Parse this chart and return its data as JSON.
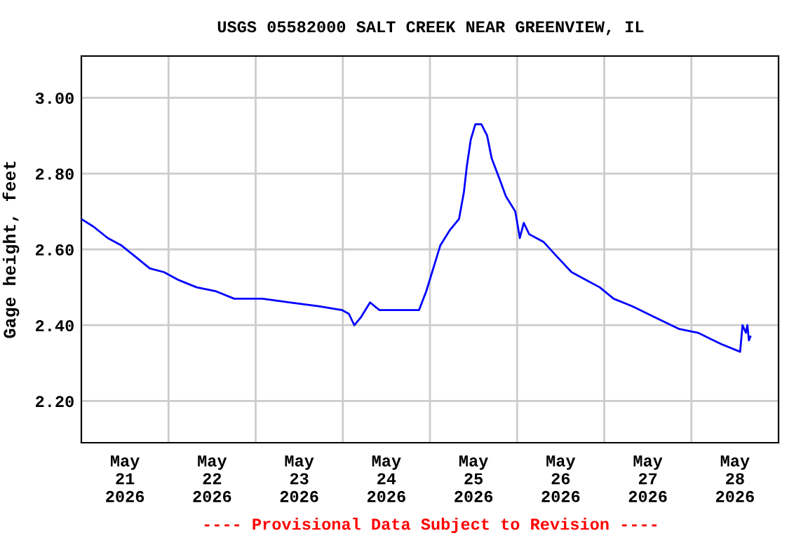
{
  "chart_data": {
    "type": "line",
    "title": "USGS 05582000 SALT CREEK NEAR GREENVIEW, IL",
    "ylabel": "Gage height, feet",
    "annotations": [
      "---- Provisional Data Subject to Revision ----"
    ],
    "series": [
      {
        "color": "#0000ff",
        "x": [
          "2026-05-21T00:00",
          "2026-05-21T03:20",
          "2026-05-21T07:15",
          "2026-05-21T11:05",
          "2026-05-21T15:00",
          "2026-05-21T18:50",
          "2026-05-21T22:45",
          "2026-05-22T02:35",
          "2026-05-22T07:45",
          "2026-05-22T12:55",
          "2026-05-22T18:05",
          "2026-05-23T01:50",
          "2026-05-23T09:35",
          "2026-05-23T17:20",
          "2026-05-23T23:45",
          "2026-05-24T01:40",
          "2026-05-24T03:10",
          "2026-05-24T04:55",
          "2026-05-24T07:30",
          "2026-05-24T10:05",
          "2026-05-24T15:15",
          "2026-05-24T21:00",
          "2026-05-24T23:00",
          "2026-05-25T00:55",
          "2026-05-25T02:50",
          "2026-05-25T05:25",
          "2026-05-25T08:00",
          "2026-05-25T09:20",
          "2026-05-25T10:10",
          "2026-05-25T11:15",
          "2026-05-25T12:30",
          "2026-05-25T14:10",
          "2026-05-25T15:45",
          "2026-05-25T17:00",
          "2026-05-25T19:00",
          "2026-05-25T20:55",
          "2026-05-25T23:30",
          "2026-05-26T00:45",
          "2026-05-26T01:50",
          "2026-05-26T03:20",
          "2026-05-26T07:15",
          "2026-05-26T11:05",
          "2026-05-26T15:00",
          "2026-05-26T18:50",
          "2026-05-26T22:45",
          "2026-05-27T02:35",
          "2026-05-27T07:45",
          "2026-05-27T14:10",
          "2026-05-27T20:40",
          "2026-05-28T01:50",
          "2026-05-28T08:15",
          "2026-05-28T13:25",
          "2026-05-28T14:05",
          "2026-05-28T15:00",
          "2026-05-28T15:25",
          "2026-05-28T15:50",
          "2026-05-28T16:15"
        ],
        "values": [
          2.68,
          2.66,
          2.63,
          2.61,
          2.58,
          2.55,
          2.54,
          2.52,
          2.5,
          2.49,
          2.47,
          2.47,
          2.46,
          2.45,
          2.44,
          2.43,
          2.4,
          2.42,
          2.46,
          2.44,
          2.44,
          2.44,
          2.49,
          2.55,
          2.61,
          2.65,
          2.68,
          2.75,
          2.82,
          2.89,
          2.93,
          2.93,
          2.9,
          2.84,
          2.79,
          2.74,
          2.7,
          2.63,
          2.67,
          2.64,
          2.62,
          2.58,
          2.54,
          2.52,
          2.5,
          2.47,
          2.45,
          2.42,
          2.39,
          2.38,
          2.35,
          2.33,
          2.4,
          2.38,
          2.4,
          2.36,
          2.37
        ]
      }
    ],
    "xlim": [
      "2026-05-21T00:00",
      "2026-05-29T00:00"
    ],
    "xticks": [
      {
        "value": "2026-05-21T12:00",
        "label": "May\n21\n2026"
      },
      {
        "value": "2026-05-22T00:00",
        "label": null
      },
      {
        "value": "2026-05-22T12:00",
        "label": "May\n22\n2026"
      },
      {
        "value": "2026-05-23T00:00",
        "label": null
      },
      {
        "value": "2026-05-23T12:00",
        "label": "May\n23\n2026"
      },
      {
        "value": "2026-05-24T00:00",
        "label": null
      },
      {
        "value": "2026-05-24T12:00",
        "label": "May\n24\n2026"
      },
      {
        "value": "2026-05-25T00:00",
        "label": null
      },
      {
        "value": "2026-05-25T12:00",
        "label": "May\n25\n2026"
      },
      {
        "value": "2026-05-26T00:00",
        "label": null
      },
      {
        "value": "2026-05-26T12:00",
        "label": "May\n26\n2026"
      },
      {
        "value": "2026-05-27T00:00",
        "label": null
      },
      {
        "value": "2026-05-27T12:00",
        "label": "May\n27\n2026"
      },
      {
        "value": "2026-05-28T00:00",
        "label": null
      },
      {
        "value": "2026-05-28T12:00",
        "label": "May\n28\n2026"
      }
    ],
    "ylim": [
      2.09,
      3.11
    ],
    "yticks": [
      {
        "value": 2.2,
        "label": "2.20"
      },
      {
        "value": 2.4,
        "label": "2.40"
      },
      {
        "value": 2.6,
        "label": "2.60"
      },
      {
        "value": 2.8,
        "label": "2.80"
      },
      {
        "value": 3.0,
        "label": "3.00"
      }
    ],
    "grid": true,
    "line_style": "solid",
    "marker": "none"
  }
}
